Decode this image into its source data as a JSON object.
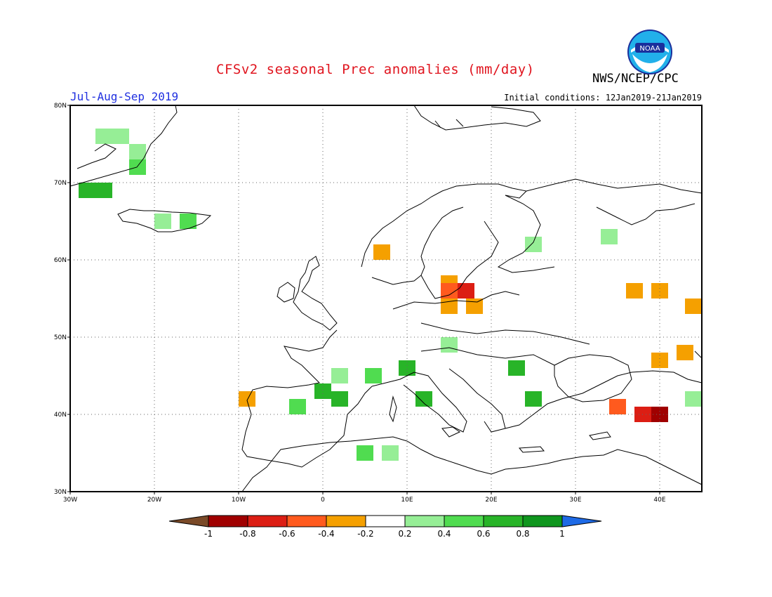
{
  "header": {
    "title": "CFSv2 seasonal Prec anomalies (mm/day)",
    "agency": "NWS/NCEP/CPC",
    "period": "Jul-Aug-Sep 2019",
    "initial_conditions": "Initial conditions: 12Jan2019-21Jan2019",
    "logo_text": "NOAA"
  },
  "map": {
    "lon_labels": [
      "30W",
      "20W",
      "10W",
      "0",
      "10E",
      "20E",
      "30E",
      "40E"
    ],
    "lat_labels": [
      "80N",
      "70N",
      "60N",
      "50N",
      "40N",
      "30N"
    ],
    "lon_range": [
      -30,
      45
    ],
    "lat_range": [
      30,
      80
    ],
    "grid": "dotted"
  },
  "colorbar": {
    "labels": [
      "-1",
      "-0.8",
      "-0.6",
      "-0.4",
      "-0.2",
      "0.2",
      "0.4",
      "0.6",
      "0.8",
      "1"
    ],
    "low_color": "#7a4a28",
    "high_color": "#1e6ae6",
    "colors": [
      "#a00000",
      "#dc1e14",
      "#ff5a1e",
      "#f5a000",
      "#ffffff",
      "#96ee96",
      "#50dc50",
      "#28b428",
      "#0f961e"
    ]
  },
  "chart_data": {
    "type": "heatmap",
    "title": "CFSv2 seasonal Prec anomalies (mm/day)",
    "xlabel": "",
    "ylabel": "",
    "xlim": [
      -30,
      45
    ],
    "ylim": [
      30,
      80
    ],
    "units": "mm/day",
    "cells": [
      {
        "lon": -26,
        "lat": 76,
        "value": 0.3
      },
      {
        "lon": -24,
        "lat": 76,
        "value": 0.3
      },
      {
        "lon": -22,
        "lat": 74,
        "value": 0.3
      },
      {
        "lon": -22,
        "lat": 72,
        "value": 0.5
      },
      {
        "lon": -28,
        "lat": 69,
        "value": 0.7
      },
      {
        "lon": -26,
        "lat": 69,
        "value": 0.7
      },
      {
        "lon": -19,
        "lat": 65,
        "value": 0.3
      },
      {
        "lon": -16,
        "lat": 65,
        "value": 0.5
      },
      {
        "lon": -9,
        "lat": 42,
        "value": -0.3
      },
      {
        "lon": -3,
        "lat": 41,
        "value": 0.5
      },
      {
        "lon": 0,
        "lat": 43,
        "value": 0.7
      },
      {
        "lon": 2,
        "lat": 42,
        "value": 0.7
      },
      {
        "lon": 2,
        "lat": 45,
        "value": 0.3
      },
      {
        "lon": 6,
        "lat": 45,
        "value": 0.5
      },
      {
        "lon": 10,
        "lat": 46,
        "value": 0.7
      },
      {
        "lon": 12,
        "lat": 42,
        "value": 0.7
      },
      {
        "lon": 15,
        "lat": 49,
        "value": 0.3
      },
      {
        "lon": 23,
        "lat": 46,
        "value": 0.7
      },
      {
        "lon": 25,
        "lat": 42,
        "value": 0.6
      },
      {
        "lon": 5,
        "lat": 35,
        "value": 0.4
      },
      {
        "lon": 8,
        "lat": 35,
        "value": 0.3
      },
      {
        "lon": 15,
        "lat": 57,
        "value": -0.3
      },
      {
        "lon": 15,
        "lat": 56,
        "value": -0.5
      },
      {
        "lon": 17,
        "lat": 56,
        "value": -0.7
      },
      {
        "lon": 15,
        "lat": 54,
        "value": -0.3
      },
      {
        "lon": 18,
        "lat": 54,
        "value": -0.3
      },
      {
        "lon": 7,
        "lat": 61,
        "value": -0.3
      },
      {
        "lon": 37,
        "lat": 56,
        "value": -0.3
      },
      {
        "lon": 40,
        "lat": 56,
        "value": -0.3
      },
      {
        "lon": 44,
        "lat": 54,
        "value": -0.3
      },
      {
        "lon": 40,
        "lat": 47,
        "value": -0.3
      },
      {
        "lon": 43,
        "lat": 48,
        "value": -0.3
      },
      {
        "lon": 35,
        "lat": 41,
        "value": -0.5
      },
      {
        "lon": 38,
        "lat": 40,
        "value": -0.8
      },
      {
        "lon": 40,
        "lat": 40,
        "value": -0.9
      },
      {
        "lon": 44,
        "lat": 42,
        "value": 0.3
      },
      {
        "lon": 34,
        "lat": 63,
        "value": 0.3
      },
      {
        "lon": 25,
        "lat": 62,
        "value": 0.3
      }
    ]
  }
}
